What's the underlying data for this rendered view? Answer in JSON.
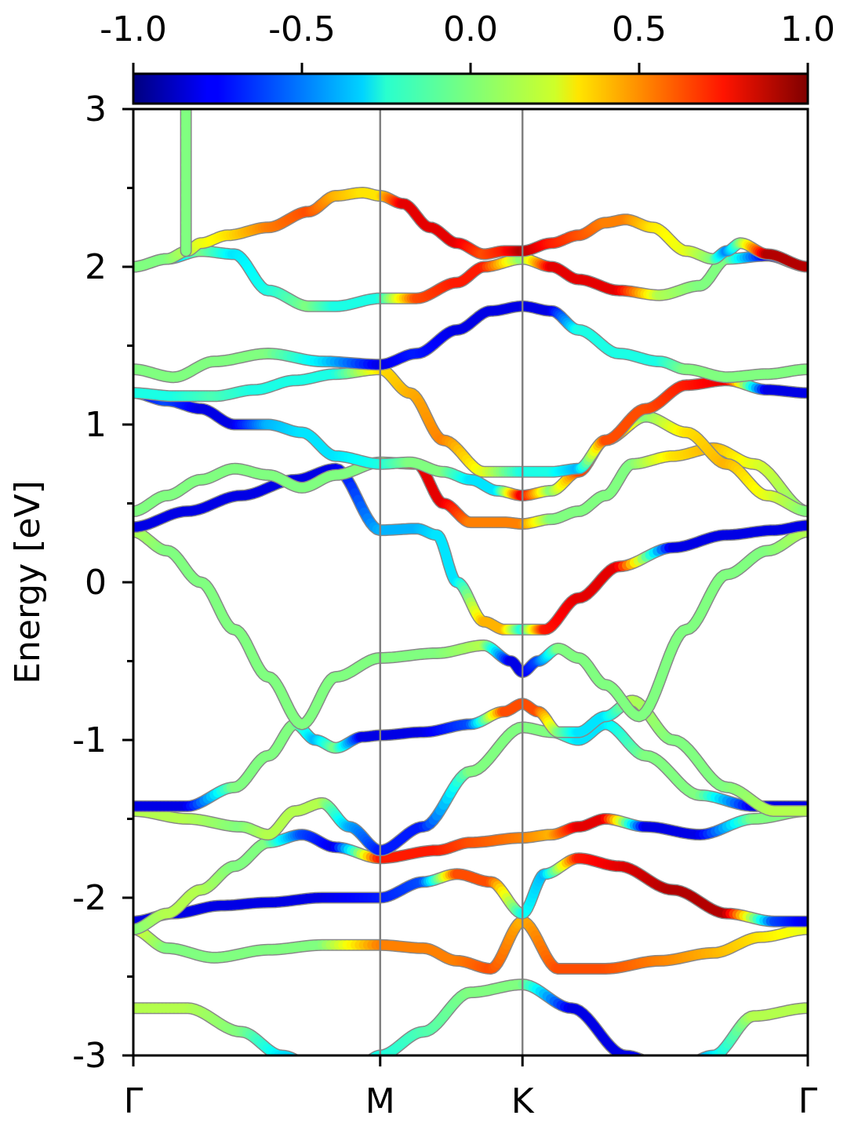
{
  "chart_data": {
    "type": "line",
    "title": "",
    "xlabel": "",
    "ylabel": "Energy [eV]",
    "ylim": [
      -3,
      3
    ],
    "xlim": [
      0,
      1
    ],
    "yticks": [
      "-3",
      "-2",
      "-1",
      "0",
      "1",
      "2",
      "3"
    ],
    "yticks_values": [
      -3,
      -2,
      -1,
      0,
      1,
      2,
      3
    ],
    "xticks": [
      {
        "label": "Γ",
        "value": 0.0
      },
      {
        "label": "M",
        "value": 0.366
      },
      {
        "label": "K",
        "value": 0.577
      },
      {
        "label": "Γ",
        "value": 1.0
      }
    ],
    "colorbar": {
      "colormap": "jet",
      "range": [
        -1.0,
        1.0
      ],
      "tick_labels": [
        "-1.0",
        "-0.5",
        "0.0",
        "0.5",
        "1.0"
      ],
      "tick_values": [
        -1.0,
        -0.5,
        0.0,
        0.5,
        1.0
      ],
      "placement": "top"
    },
    "colors": {
      "axis": "#000000",
      "vertical_lines": "#808080",
      "band_outline": "#888888"
    },
    "bands": [
      {
        "x": [
          0,
          0.08,
          0.16,
          0.22,
          0.28,
          0.34,
          0.366,
          0.43,
          0.5,
          0.577,
          0.65,
          0.73,
          0.8,
          0.86,
          0.92,
          1.0
        ],
        "y": [
          -2.7,
          -2.7,
          -2.85,
          -3.0,
          -3.1,
          -3.05,
          -3.0,
          -2.85,
          -2.6,
          -2.55,
          -2.7,
          -3.0,
          -3.1,
          -3.0,
          -2.75,
          -2.7
        ],
        "c": [
          0.1,
          0.1,
          0.0,
          -0.3,
          -0.4,
          -0.3,
          -0.2,
          -0.1,
          0.0,
          0.0,
          -0.8,
          -0.8,
          -0.7,
          -0.3,
          0.1,
          0.1
        ]
      },
      {
        "x": [
          0,
          0.05,
          0.12,
          0.2,
          0.28,
          0.366,
          0.43,
          0.48,
          0.53,
          0.577,
          0.63,
          0.7,
          0.78,
          0.86,
          0.93,
          1.0
        ],
        "y": [
          -2.2,
          -2.32,
          -2.38,
          -2.33,
          -2.3,
          -2.3,
          -2.32,
          -2.4,
          -2.45,
          -2.15,
          -2.45,
          -2.45,
          -2.4,
          -2.35,
          -2.25,
          -2.2
        ],
        "c": [
          0.2,
          0.0,
          0.0,
          0.0,
          0.0,
          0.5,
          0.5,
          0.5,
          0.6,
          0.4,
          0.6,
          0.6,
          0.5,
          0.4,
          0.3,
          0.2
        ]
      },
      {
        "x": [
          0,
          0.06,
          0.13,
          0.2,
          0.28,
          0.366,
          0.43,
          0.48,
          0.53,
          0.577,
          0.61,
          0.66,
          0.72,
          0.8,
          0.88,
          0.95,
          1.0
        ],
        "y": [
          -2.15,
          -2.1,
          -2.05,
          -2.03,
          -2.0,
          -2.0,
          -1.9,
          -1.85,
          -1.9,
          -2.1,
          -1.85,
          -1.75,
          -1.8,
          -1.95,
          -2.1,
          -2.15,
          -2.15
        ],
        "c": [
          -0.8,
          -0.8,
          -0.8,
          -0.8,
          -0.8,
          -0.7,
          -0.6,
          0.6,
          0.6,
          -0.2,
          -0.4,
          0.7,
          0.8,
          0.9,
          0.9,
          -0.6,
          -0.8
        ]
      },
      {
        "x": [
          0,
          0.05,
          0.1,
          0.15,
          0.2,
          0.25,
          0.3,
          0.366,
          0.45,
          0.5,
          0.577,
          0.62,
          0.66,
          0.7,
          0.76,
          0.84,
          0.92,
          1.0
        ],
        "y": [
          -2.2,
          -2.1,
          -1.95,
          -1.8,
          -1.65,
          -1.6,
          -1.68,
          -1.75,
          -1.7,
          -1.65,
          -1.62,
          -1.6,
          -1.55,
          -1.5,
          -1.55,
          -1.6,
          -1.5,
          -1.45
        ],
        "c": [
          0.0,
          0.1,
          0.1,
          0.0,
          0.0,
          -0.6,
          -0.8,
          0.7,
          0.7,
          0.6,
          0.5,
          0.4,
          0.8,
          0.8,
          -0.8,
          -0.8,
          0.0,
          0.0
        ]
      },
      {
        "x": [
          0,
          0.08,
          0.16,
          0.2,
          0.24,
          0.28,
          0.32,
          0.366,
          0.43,
          0.5,
          0.577,
          0.62,
          0.66,
          0.7,
          0.76,
          0.84,
          0.92,
          1.0
        ],
        "y": [
          -1.45,
          -1.5,
          -1.55,
          -1.6,
          -1.45,
          -1.4,
          -1.55,
          -1.7,
          -1.55,
          -1.2,
          -0.92,
          -0.95,
          -1.0,
          -0.9,
          -1.1,
          -1.35,
          -1.42,
          -1.42
        ],
        "c": [
          0.1,
          0.1,
          0.0,
          0.1,
          0.1,
          0.1,
          -0.4,
          -0.7,
          -0.7,
          0.0,
          0.0,
          0.0,
          -0.3,
          -0.3,
          0.0,
          0.0,
          -0.8,
          -0.8
        ]
      },
      {
        "x": [
          0,
          0.08,
          0.15,
          0.2,
          0.24,
          0.27,
          0.3,
          0.34,
          0.366,
          0.43,
          0.5,
          0.55,
          0.577,
          0.6,
          0.63,
          0.66,
          0.7,
          0.74,
          0.8,
          0.88,
          0.95,
          1.0
        ],
        "y": [
          -1.42,
          -1.42,
          -1.3,
          -1.1,
          -0.9,
          -1.0,
          -1.05,
          -0.98,
          -0.97,
          -0.95,
          -0.9,
          -0.82,
          -0.77,
          -0.82,
          -0.95,
          -0.95,
          -0.85,
          -0.75,
          -1.0,
          -1.3,
          -1.45,
          -1.45
        ],
        "c": [
          -0.8,
          -0.8,
          0.0,
          0.0,
          0.0,
          -0.4,
          0.0,
          -0.8,
          -0.8,
          -0.8,
          -0.6,
          0.6,
          0.6,
          0.6,
          0.0,
          -0.3,
          -0.3,
          0.1,
          0.0,
          0.0,
          0.1,
          0.1
        ]
      },
      {
        "x": [
          0,
          0.05,
          0.1,
          0.15,
          0.2,
          0.25,
          0.3,
          0.366,
          0.45,
          0.52,
          0.56,
          0.577,
          0.6,
          0.63,
          0.66,
          0.7,
          0.75,
          0.82,
          0.88,
          0.94,
          1.0
        ],
        "y": [
          0.32,
          0.2,
          0.0,
          -0.3,
          -0.6,
          -0.9,
          -0.6,
          -0.48,
          -0.45,
          -0.4,
          -0.5,
          -0.57,
          -0.5,
          -0.42,
          -0.48,
          -0.65,
          -0.85,
          -0.3,
          0.05,
          0.2,
          0.32
        ],
        "c": [
          0.1,
          0.0,
          0.0,
          0.0,
          0.0,
          0.0,
          0.0,
          0.0,
          0.0,
          0.1,
          -0.8,
          -0.8,
          -0.6,
          0.0,
          0.0,
          0.0,
          0.0,
          0.0,
          0.0,
          0.0,
          0.1
        ]
      },
      {
        "x": [
          0,
          0.08,
          0.16,
          0.24,
          0.3,
          0.366,
          0.42,
          0.45,
          0.48,
          0.52,
          0.55,
          0.577,
          0.61,
          0.66,
          0.72,
          0.8,
          0.88,
          0.95,
          1.0
        ],
        "y": [
          0.35,
          0.45,
          0.55,
          0.65,
          0.72,
          0.33,
          0.34,
          0.3,
          0.0,
          -0.25,
          -0.3,
          -0.3,
          -0.3,
          -0.1,
          0.1,
          0.22,
          0.3,
          0.33,
          0.36
        ],
        "c": [
          -0.8,
          -0.8,
          -0.8,
          -0.8,
          -0.8,
          -0.4,
          -0.4,
          -0.3,
          -0.3,
          0.4,
          0.4,
          -0.2,
          0.7,
          0.8,
          0.8,
          -0.8,
          -0.8,
          -0.8,
          -0.8
        ]
      },
      {
        "x": [
          0,
          0.05,
          0.1,
          0.15,
          0.2,
          0.25,
          0.3,
          0.366,
          0.42,
          0.46,
          0.5,
          0.55,
          0.577,
          0.62,
          0.66,
          0.7,
          0.74,
          0.8,
          0.86,
          0.92,
          1.0
        ],
        "y": [
          0.45,
          0.55,
          0.65,
          0.72,
          0.68,
          0.6,
          0.68,
          0.76,
          0.75,
          0.5,
          0.38,
          0.38,
          0.37,
          0.4,
          0.45,
          0.55,
          0.75,
          0.8,
          0.85,
          0.75,
          0.45
        ],
        "c": [
          0.0,
          0.0,
          0.0,
          0.0,
          0.0,
          0.0,
          0.0,
          0.0,
          0.8,
          0.8,
          0.5,
          0.5,
          0.5,
          0.0,
          0.0,
          0.0,
          0.0,
          0.3,
          0.4,
          0.2,
          0.0
        ]
      },
      {
        "x": [
          0,
          0.05,
          0.1,
          0.15,
          0.2,
          0.25,
          0.3,
          0.366,
          0.41,
          0.46,
          0.5,
          0.54,
          0.577,
          0.62,
          0.66,
          0.7,
          0.76,
          0.82,
          0.88,
          0.94,
          1.0
        ],
        "y": [
          1.2,
          1.15,
          1.1,
          1.0,
          1.0,
          0.95,
          0.8,
          0.75,
          0.76,
          0.7,
          0.65,
          0.58,
          0.55,
          0.58,
          0.7,
          0.9,
          1.05,
          0.95,
          0.75,
          0.55,
          0.45
        ],
        "c": [
          -0.8,
          -0.6,
          -0.8,
          -0.8,
          -0.4,
          -0.3,
          -0.3,
          -0.2,
          0.0,
          0.0,
          -0.3,
          -0.3,
          0.8,
          0.0,
          0.6,
          0.7,
          0.0,
          0.3,
          0.4,
          0.2,
          0.0
        ]
      },
      {
        "x": [
          0,
          0.06,
          0.12,
          0.18,
          0.24,
          0.3,
          0.366,
          0.41,
          0.46,
          0.52,
          0.577,
          0.62,
          0.66,
          0.7,
          0.76,
          0.82,
          0.88,
          0.94,
          1.0
        ],
        "y": [
          1.2,
          1.18,
          1.18,
          1.22,
          1.28,
          1.32,
          1.35,
          1.2,
          0.9,
          0.7,
          0.7,
          0.7,
          0.72,
          0.9,
          1.1,
          1.25,
          1.28,
          1.22,
          1.2
        ],
        "c": [
          -0.2,
          -0.2,
          -0.1,
          -0.2,
          -0.2,
          -0.2,
          0.3,
          0.4,
          0.5,
          0.2,
          -0.2,
          -0.2,
          -0.4,
          0.6,
          0.6,
          0.7,
          0.8,
          -0.8,
          -0.8
        ]
      },
      {
        "x": [
          0,
          0.06,
          0.12,
          0.2,
          0.28,
          0.366,
          0.42,
          0.48,
          0.53,
          0.577,
          0.62,
          0.66,
          0.72,
          0.78,
          0.82,
          0.88,
          0.94,
          1.0
        ],
        "y": [
          1.35,
          1.3,
          1.4,
          1.45,
          1.4,
          1.38,
          1.45,
          1.6,
          1.72,
          1.75,
          1.72,
          1.6,
          1.45,
          1.4,
          1.35,
          1.3,
          1.32,
          1.35
        ],
        "c": [
          0.0,
          0.0,
          0.0,
          0.0,
          -0.3,
          -0.8,
          -0.7,
          -0.8,
          -0.8,
          -0.8,
          -0.8,
          -0.2,
          -0.2,
          -0.2,
          0.0,
          0.0,
          0.0,
          0.0
        ]
      },
      {
        "x": [
          0,
          0.05,
          0.1,
          0.15,
          0.2,
          0.26,
          0.3,
          0.366,
          0.42,
          0.48,
          0.52,
          0.577,
          0.62,
          0.66,
          0.72,
          0.78,
          0.84,
          0.88,
          0.94,
          1.0
        ],
        "y": [
          2.0,
          2.05,
          2.1,
          2.08,
          1.85,
          1.75,
          1.75,
          1.8,
          1.8,
          1.9,
          2.0,
          2.05,
          2.0,
          1.92,
          1.85,
          1.82,
          1.88,
          2.05,
          2.07,
          2.0
        ],
        "c": [
          -0.8,
          -0.5,
          0.0,
          -0.3,
          -0.2,
          0.0,
          -0.2,
          -0.2,
          0.6,
          0.7,
          0.7,
          0.0,
          0.8,
          0.8,
          0.8,
          0.1,
          0.0,
          0.0,
          -0.8,
          -0.8
        ]
      },
      {
        "x": [
          0,
          0.05,
          0.08,
          0.1,
          0.14,
          0.2,
          0.26,
          0.3,
          0.34,
          0.366,
          0.4,
          0.44,
          0.48,
          0.52,
          0.55,
          0.577,
          0.62,
          0.66,
          0.7,
          0.73,
          0.77,
          0.82,
          0.86,
          0.88,
          0.9,
          0.94,
          1.0
        ],
        "y": [
          2.0,
          2.05,
          2.1,
          2.15,
          2.2,
          2.25,
          2.35,
          2.45,
          2.47,
          2.45,
          2.4,
          2.25,
          2.15,
          2.08,
          2.1,
          2.1,
          2.15,
          2.2,
          2.28,
          2.3,
          2.25,
          2.1,
          2.05,
          2.1,
          2.15,
          2.08,
          2.0
        ],
        "c": [
          0.0,
          0.0,
          0.1,
          0.2,
          0.3,
          0.5,
          0.6,
          0.4,
          0.3,
          0.3,
          0.8,
          0.8,
          0.8,
          0.6,
          0.7,
          0.9,
          0.7,
          0.6,
          0.5,
          0.5,
          0.3,
          0.2,
          0.0,
          -0.5,
          0.0,
          0.9,
          0.9
        ]
      },
      {
        "x": [
          0.078,
          0.078
        ],
        "y": [
          2.1,
          3.0
        ],
        "c": [
          0.0,
          0.0
        ]
      }
    ]
  }
}
